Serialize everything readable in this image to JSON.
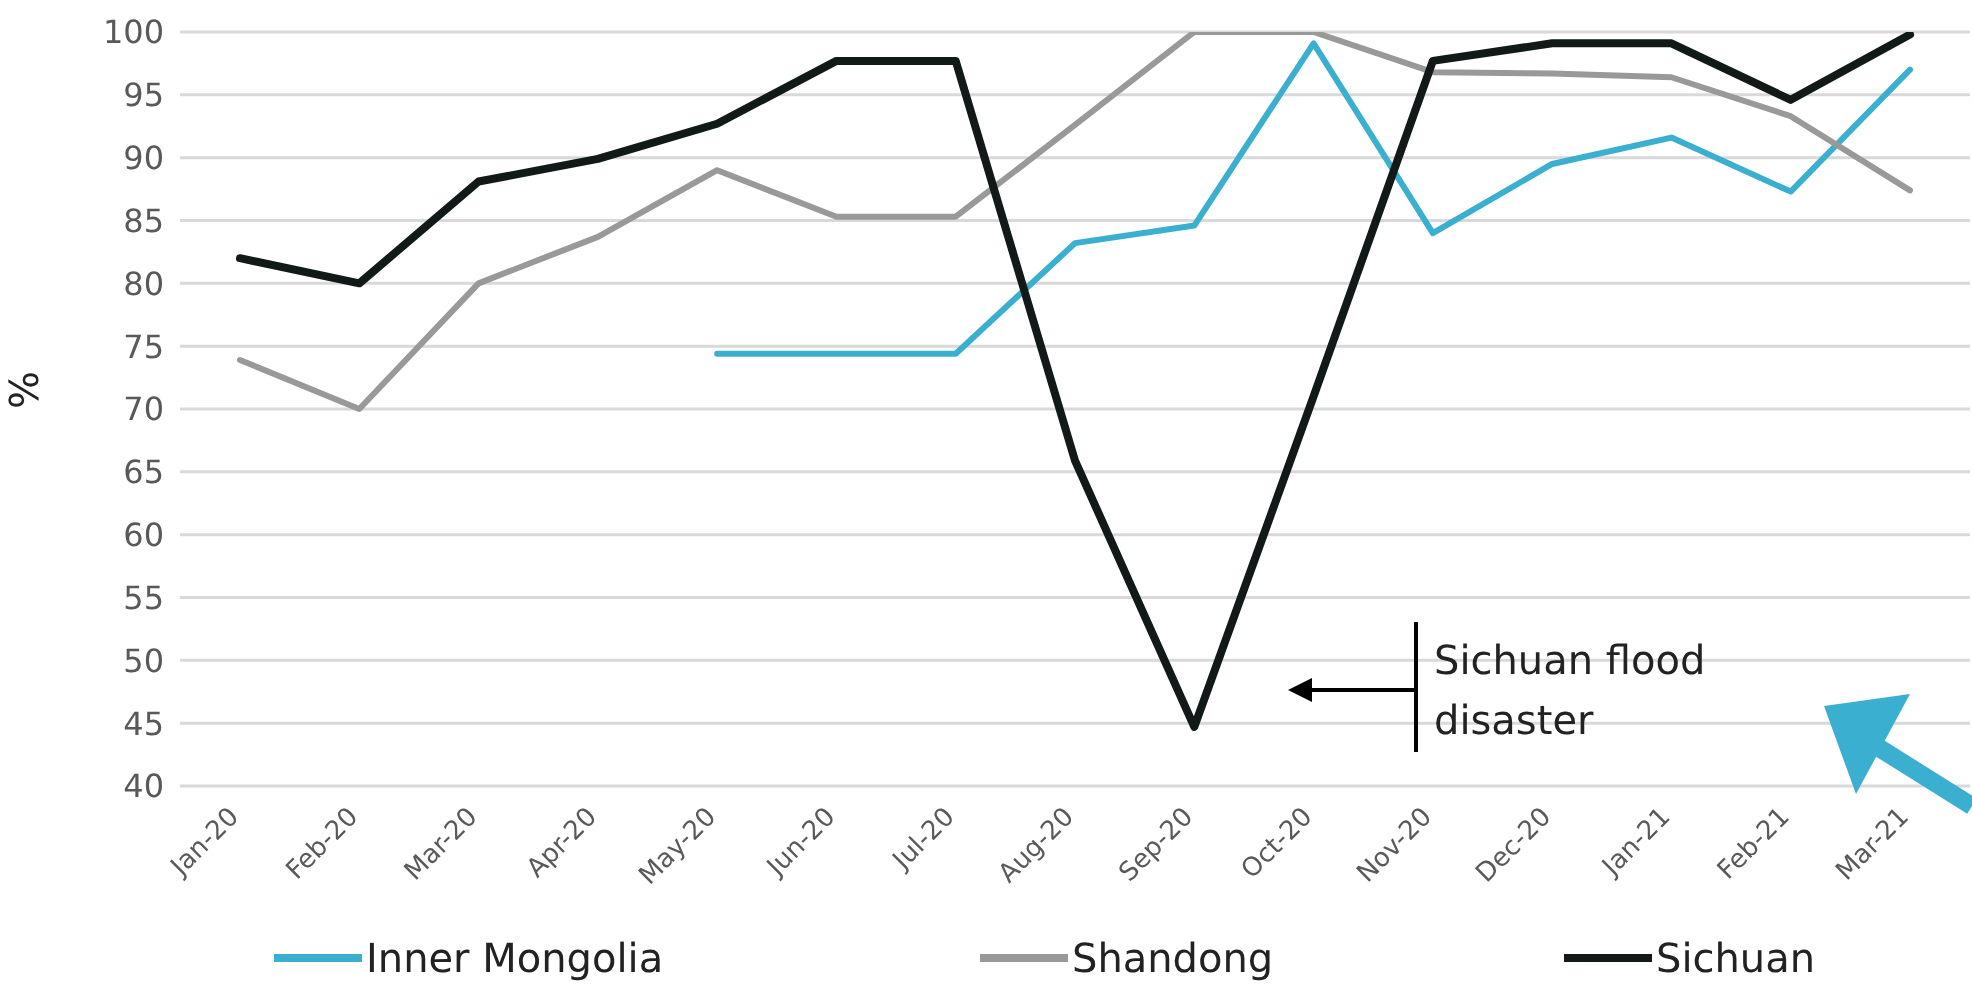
{
  "chart_data": {
    "type": "line",
    "ylabel": "%",
    "categories": [
      "Jan-20",
      "Feb-20",
      "Mar-20",
      "Apr-20",
      "May-20",
      "Jun-20",
      "Jul-20",
      "Aug-20",
      "Sep-20",
      "Oct-20",
      "Nov-20",
      "Dec-20",
      "Jan-21",
      "Feb-21",
      "Mar-21"
    ],
    "series": [
      {
        "name": "Inner Mongolia",
        "color": "#3aafd0",
        "values": [
          null,
          null,
          null,
          null,
          74.4,
          74.4,
          74.4,
          83.2,
          84.6,
          99.1,
          84,
          89.5,
          91.6,
          87.3,
          97
        ]
      },
      {
        "name": "Shandong",
        "color": "#999999",
        "values": [
          73.9,
          70,
          80,
          83.7,
          89,
          85.3,
          85.3,
          92.6,
          100,
          100,
          96.8,
          96.7,
          96.4,
          93.3,
          87.4
        ]
      },
      {
        "name": "Sichuan",
        "color": "#111a18",
        "values": [
          82,
          80,
          88.1,
          89.9,
          92.7,
          97.7,
          97.7,
          65.9,
          44.7,
          71,
          97.7,
          99.1,
          99.1,
          94.6,
          99.8
        ]
      }
    ],
    "ylim": [
      40,
      100
    ],
    "yticks": [
      40,
      45,
      50,
      55,
      60,
      65,
      70,
      75,
      80,
      85,
      90,
      95,
      100
    ],
    "grid": "y",
    "legend": "bottom",
    "marker": "none",
    "line_style": "solid",
    "annotations": [
      "Sichuan flood disaster"
    ]
  }
}
